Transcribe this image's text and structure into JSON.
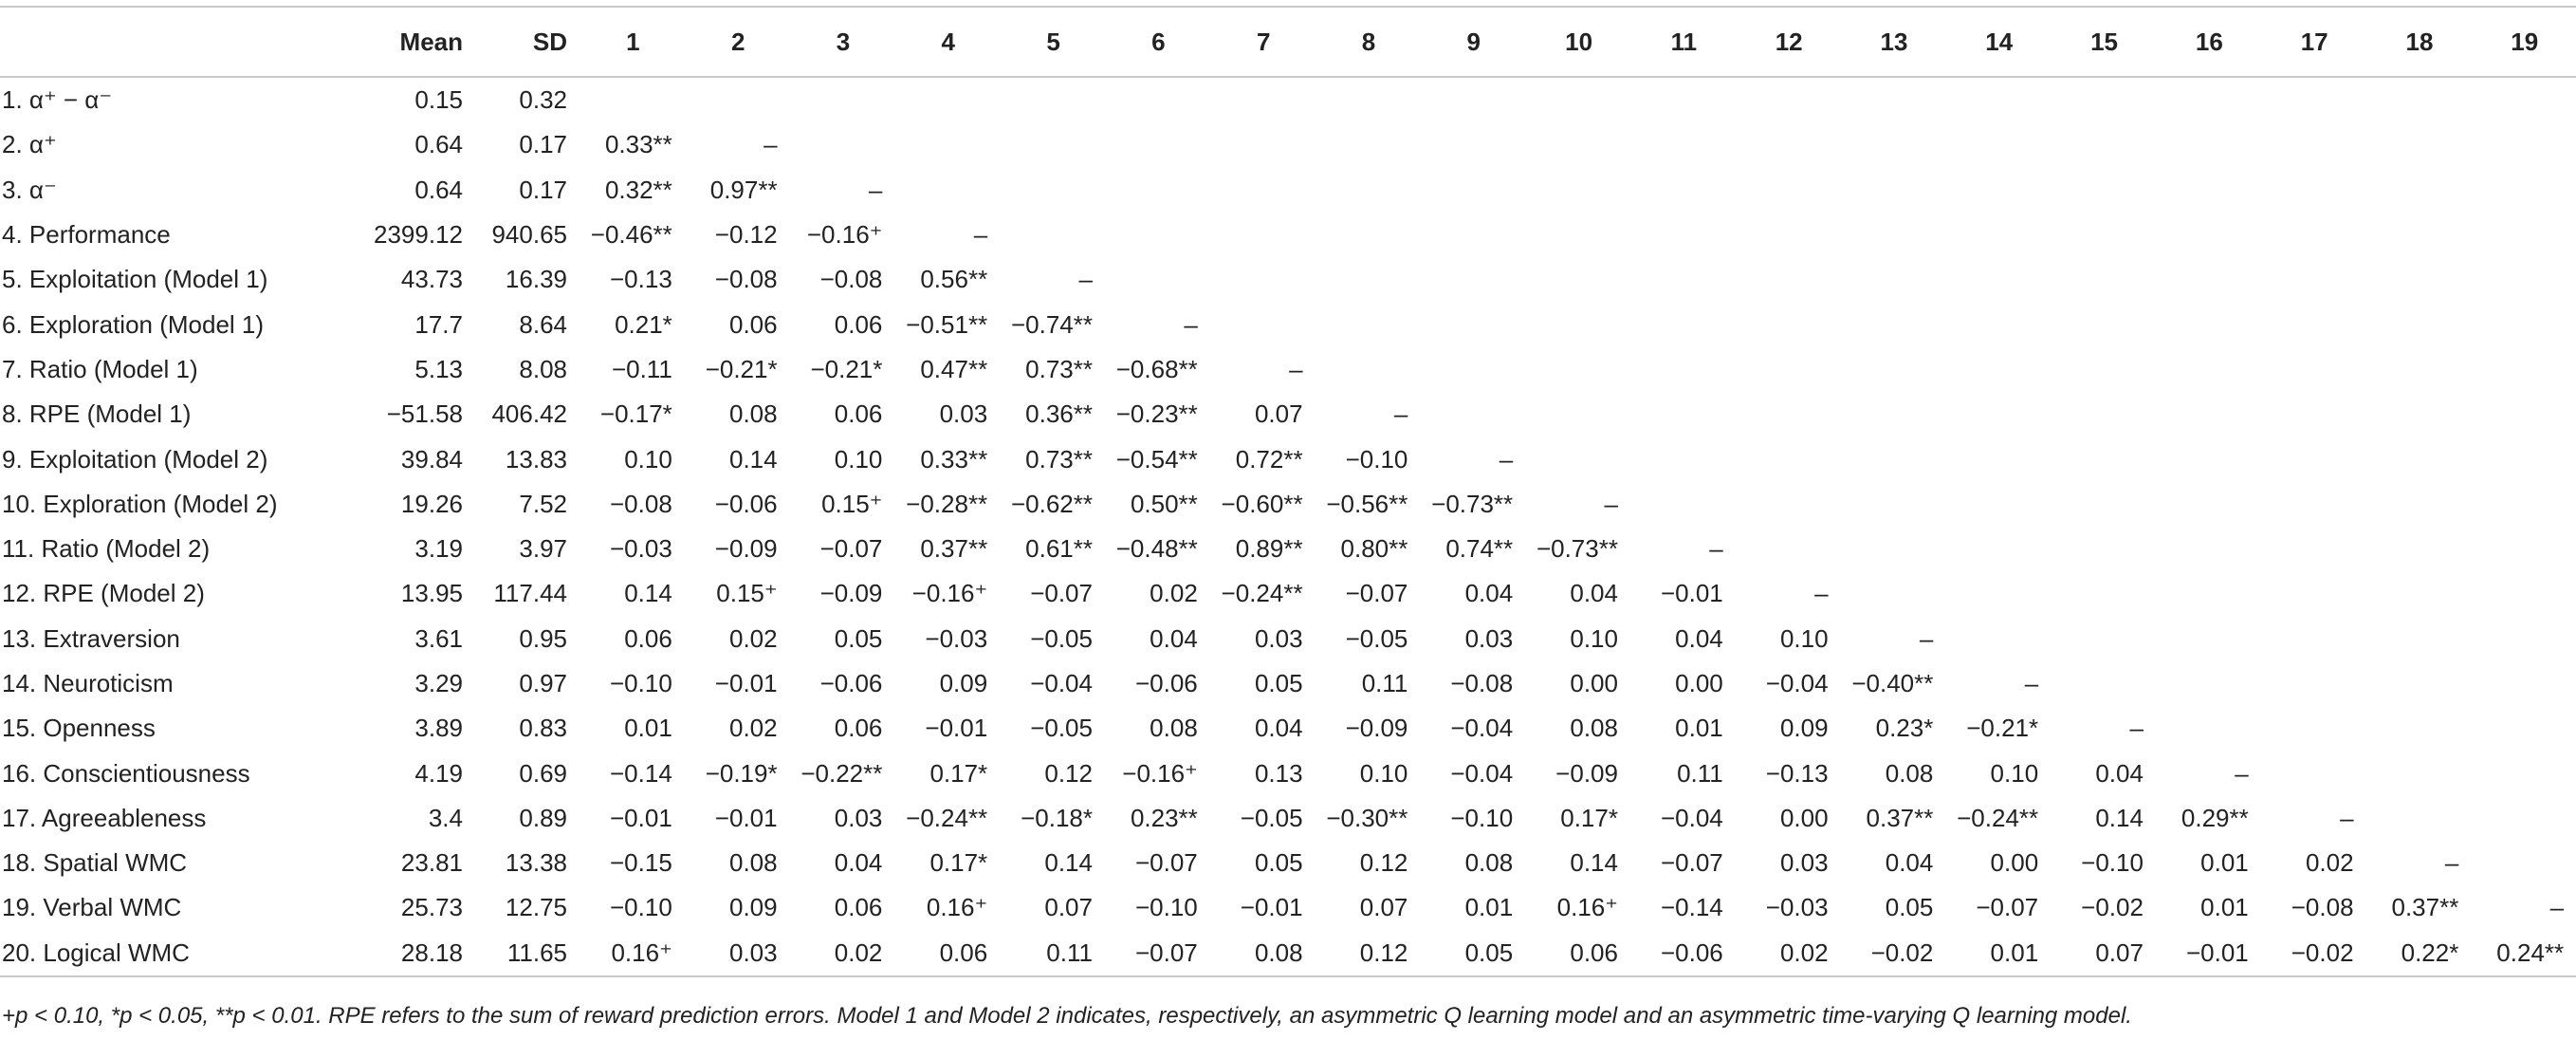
{
  "table": {
    "headers": [
      "",
      "Mean",
      "SD",
      "1",
      "2",
      "3",
      "4",
      "5",
      "6",
      "7",
      "8",
      "9",
      "10",
      "11",
      "12",
      "13",
      "14",
      "15",
      "16",
      "17",
      "18",
      "19"
    ],
    "rows": [
      {
        "label": "1. α⁺ − α⁻",
        "mean": "0.15",
        "sd": "0.32",
        "cells": []
      },
      {
        "label": "2. α⁺",
        "mean": "0.64",
        "sd": "0.17",
        "cells": [
          "0.33**",
          "–"
        ]
      },
      {
        "label": "3. α⁻",
        "mean": "0.64",
        "sd": "0.17",
        "cells": [
          "0.32**",
          "0.97**",
          "–"
        ]
      },
      {
        "label": "4. Performance",
        "mean": "2399.12",
        "sd": "940.65",
        "cells": [
          "−0.46**",
          "−0.12",
          "−0.16⁺",
          "–"
        ]
      },
      {
        "label": "5. Exploitation (Model 1)",
        "mean": "43.73",
        "sd": "16.39",
        "cells": [
          "−0.13",
          "−0.08",
          "−0.08",
          "0.56**",
          "–"
        ]
      },
      {
        "label": "6. Exploration (Model 1)",
        "mean": "17.7",
        "sd": "8.64",
        "cells": [
          "0.21*",
          "0.06",
          "0.06",
          "−0.51**",
          "−0.74**",
          "–"
        ]
      },
      {
        "label": "7. Ratio (Model 1)",
        "mean": "5.13",
        "sd": "8.08",
        "cells": [
          "−0.11",
          "−0.21*",
          "−0.21*",
          "0.47**",
          "0.73**",
          "−0.68**",
          "–"
        ]
      },
      {
        "label": "8. RPE (Model 1)",
        "mean": "−51.58",
        "sd": "406.42",
        "cells": [
          "−0.17*",
          "0.08",
          "0.06",
          "0.03",
          "0.36**",
          "−0.23**",
          "0.07",
          "–"
        ]
      },
      {
        "label": "9. Exploitation (Model 2)",
        "mean": "39.84",
        "sd": "13.83",
        "cells": [
          "0.10",
          "0.14",
          "0.10",
          "0.33**",
          "0.73**",
          "−0.54**",
          "0.72**",
          "−0.10",
          "–"
        ]
      },
      {
        "label": "10. Exploration (Model 2)",
        "mean": "19.26",
        "sd": "7.52",
        "cells": [
          "−0.08",
          "−0.06",
          "0.15⁺",
          "−0.28**",
          "−0.62**",
          "0.50**",
          "−0.60**",
          "−0.56**",
          "−0.73**",
          "–"
        ]
      },
      {
        "label": "11. Ratio (Model 2)",
        "mean": "3.19",
        "sd": "3.97",
        "cells": [
          "−0.03",
          "−0.09",
          "−0.07",
          "0.37**",
          "0.61**",
          "−0.48**",
          "0.89**",
          "0.80**",
          "0.74**",
          "−0.73**",
          "–"
        ]
      },
      {
        "label": "12. RPE (Model 2)",
        "mean": "13.95",
        "sd": "117.44",
        "cells": [
          "0.14",
          "0.15⁺",
          "−0.09",
          "−0.16⁺",
          "−0.07",
          "0.02",
          "−0.24**",
          "−0.07",
          "0.04",
          "0.04",
          "−0.01",
          "–"
        ]
      },
      {
        "label": "13. Extraversion",
        "mean": "3.61",
        "sd": "0.95",
        "cells": [
          "0.06",
          "0.02",
          "0.05",
          "−0.03",
          "−0.05",
          "0.04",
          "0.03",
          "−0.05",
          "0.03",
          "0.10",
          "0.04",
          "0.10",
          "–"
        ]
      },
      {
        "label": "14. Neuroticism",
        "mean": "3.29",
        "sd": "0.97",
        "cells": [
          "−0.10",
          "−0.01",
          "−0.06",
          "0.09",
          "−0.04",
          "−0.06",
          "0.05",
          "0.11",
          "−0.08",
          "0.00",
          "0.00",
          "−0.04",
          "−0.40**",
          "–"
        ]
      },
      {
        "label": "15. Openness",
        "mean": "3.89",
        "sd": "0.83",
        "cells": [
          "0.01",
          "0.02",
          "0.06",
          "−0.01",
          "−0.05",
          "0.08",
          "0.04",
          "−0.09",
          "−0.04",
          "0.08",
          "0.01",
          "0.09",
          "0.23*",
          "−0.21*",
          "–"
        ]
      },
      {
        "label": "16. Conscientiousness",
        "mean": "4.19",
        "sd": "0.69",
        "cells": [
          "−0.14",
          "−0.19*",
          "−0.22**",
          "0.17*",
          "0.12",
          "−0.16⁺",
          "0.13",
          "0.10",
          "−0.04",
          "−0.09",
          "0.11",
          "−0.13",
          "0.08",
          "0.10",
          "0.04",
          "–"
        ]
      },
      {
        "label": "17. Agreeableness",
        "mean": "3.4",
        "sd": "0.89",
        "cells": [
          "−0.01",
          "−0.01",
          "0.03",
          "−0.24**",
          "−0.18*",
          "0.23**",
          "−0.05",
          "−0.30**",
          "−0.10",
          "0.17*",
          "−0.04",
          "0.00",
          "0.37**",
          "−0.24**",
          "0.14",
          "0.29**",
          "–"
        ]
      },
      {
        "label": "18. Spatial WMC",
        "mean": "23.81",
        "sd": "13.38",
        "cells": [
          "−0.15",
          "0.08",
          "0.04",
          "0.17*",
          "0.14",
          "−0.07",
          "0.05",
          "0.12",
          "0.08",
          "0.14",
          "−0.07",
          "0.03",
          "0.04",
          "0.00",
          "−0.10",
          "0.01",
          "0.02",
          "–"
        ]
      },
      {
        "label": "19. Verbal WMC",
        "mean": "25.73",
        "sd": "12.75",
        "cells": [
          "−0.10",
          "0.09",
          "0.06",
          "0.16⁺",
          "0.07",
          "−0.10",
          "−0.01",
          "0.07",
          "0.01",
          "0.16⁺",
          "−0.14",
          "−0.03",
          "0.05",
          "−0.07",
          "−0.02",
          "0.01",
          "−0.08",
          "0.37**",
          "–"
        ]
      },
      {
        "label": "20. Logical WMC",
        "mean": "28.18",
        "sd": "11.65",
        "cells": [
          "0.16⁺",
          "0.03",
          "0.02",
          "0.06",
          "0.11",
          "−0.07",
          "0.08",
          "0.12",
          "0.05",
          "0.06",
          "−0.06",
          "0.02",
          "−0.02",
          "0.01",
          "0.07",
          "−0.01",
          "−0.02",
          "0.22*",
          "0.24**"
        ]
      }
    ]
  },
  "footnote": "+p < 0.10, *p < 0.05, **p < 0.01. RPE refers to the sum of reward prediction errors. Model 1 and Model 2 indicates, respectively, an asymmetric Q learning model and an asymmetric time-varying Q learning model."
}
